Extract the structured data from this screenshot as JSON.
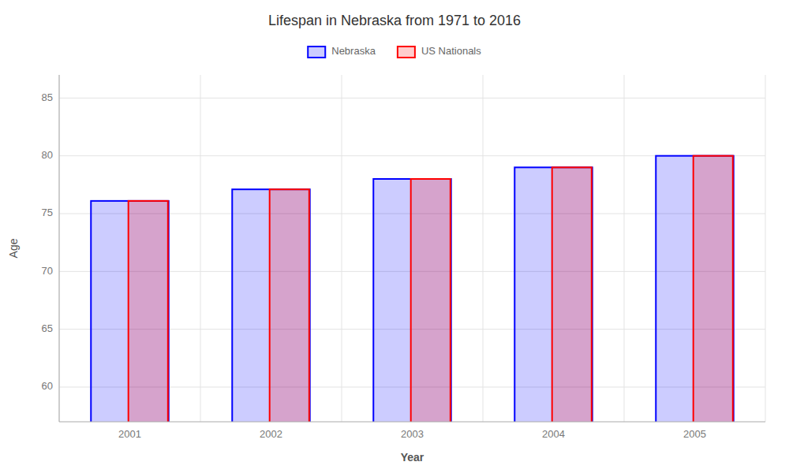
{
  "chart_data": {
    "type": "bar",
    "title": "Lifespan in Nebraska from 1971 to 2016",
    "xlabel": "Year",
    "ylabel": "Age",
    "categories": [
      "2001",
      "2002",
      "2003",
      "2004",
      "2005"
    ],
    "series": [
      {
        "name": "Nebraska",
        "color": "#0000ff",
        "values": [
          76.1,
          77.1,
          78.0,
          79.0,
          80.0
        ]
      },
      {
        "name": "US Nationals",
        "color": "#ff0000",
        "values": [
          76.1,
          77.1,
          78.0,
          79.0,
          80.0
        ]
      }
    ],
    "ylim": [
      57,
      87
    ],
    "yticks": [
      60,
      65,
      70,
      75,
      80,
      85
    ],
    "grid": true,
    "legend": "top"
  }
}
